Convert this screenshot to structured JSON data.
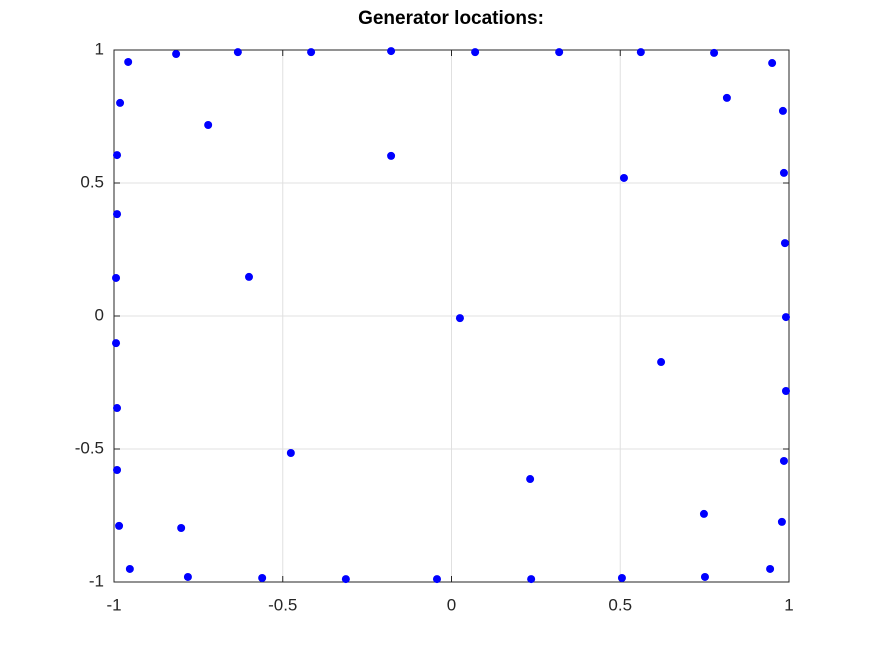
{
  "chart_data": {
    "type": "scatter",
    "title": "Generator locations:",
    "xlim": [
      -1,
      1
    ],
    "ylim": [
      -1,
      1
    ],
    "xticks": [
      -1,
      -0.5,
      0,
      0.5,
      1
    ],
    "yticks": [
      -1,
      -0.5,
      0,
      0.5,
      1
    ],
    "grid": true,
    "series": [
      {
        "color": "#0000ff",
        "x": [
          -0.958,
          -0.816,
          -0.633,
          -0.416,
          -0.179,
          0.07,
          0.319,
          0.561,
          0.778,
          0.95,
          0.816,
          0.982,
          0.985,
          0.988,
          0.991,
          0.991,
          0.985,
          0.979,
          0.944,
          0.751,
          0.748,
          0.621,
          0.511,
          0.505,
          0.236,
          0.233,
          0.025,
          -0.043,
          -0.313,
          -0.476,
          -0.561,
          -0.6,
          -0.781,
          -0.801,
          -0.953,
          -0.985,
          -0.991,
          -0.991,
          -0.994,
          -0.994,
          -0.991,
          -0.991,
          -0.982,
          -0.721,
          -0.179
        ],
        "values": [
          0.955,
          0.985,
          0.992,
          0.992,
          0.996,
          0.992,
          0.992,
          0.992,
          0.989,
          0.951,
          0.82,
          0.771,
          0.538,
          0.274,
          -0.004,
          -0.282,
          -0.545,
          -0.774,
          -0.951,
          -0.981,
          -0.744,
          -0.173,
          0.519,
          -0.985,
          -0.989,
          -0.613,
          -0.008,
          -0.989,
          -0.989,
          -0.515,
          -0.985,
          0.147,
          -0.981,
          -0.797,
          -0.951,
          -0.789,
          -0.579,
          -0.346,
          -0.102,
          0.143,
          0.383,
          0.605,
          0.801,
          0.718,
          0.602
        ]
      }
    ]
  }
}
